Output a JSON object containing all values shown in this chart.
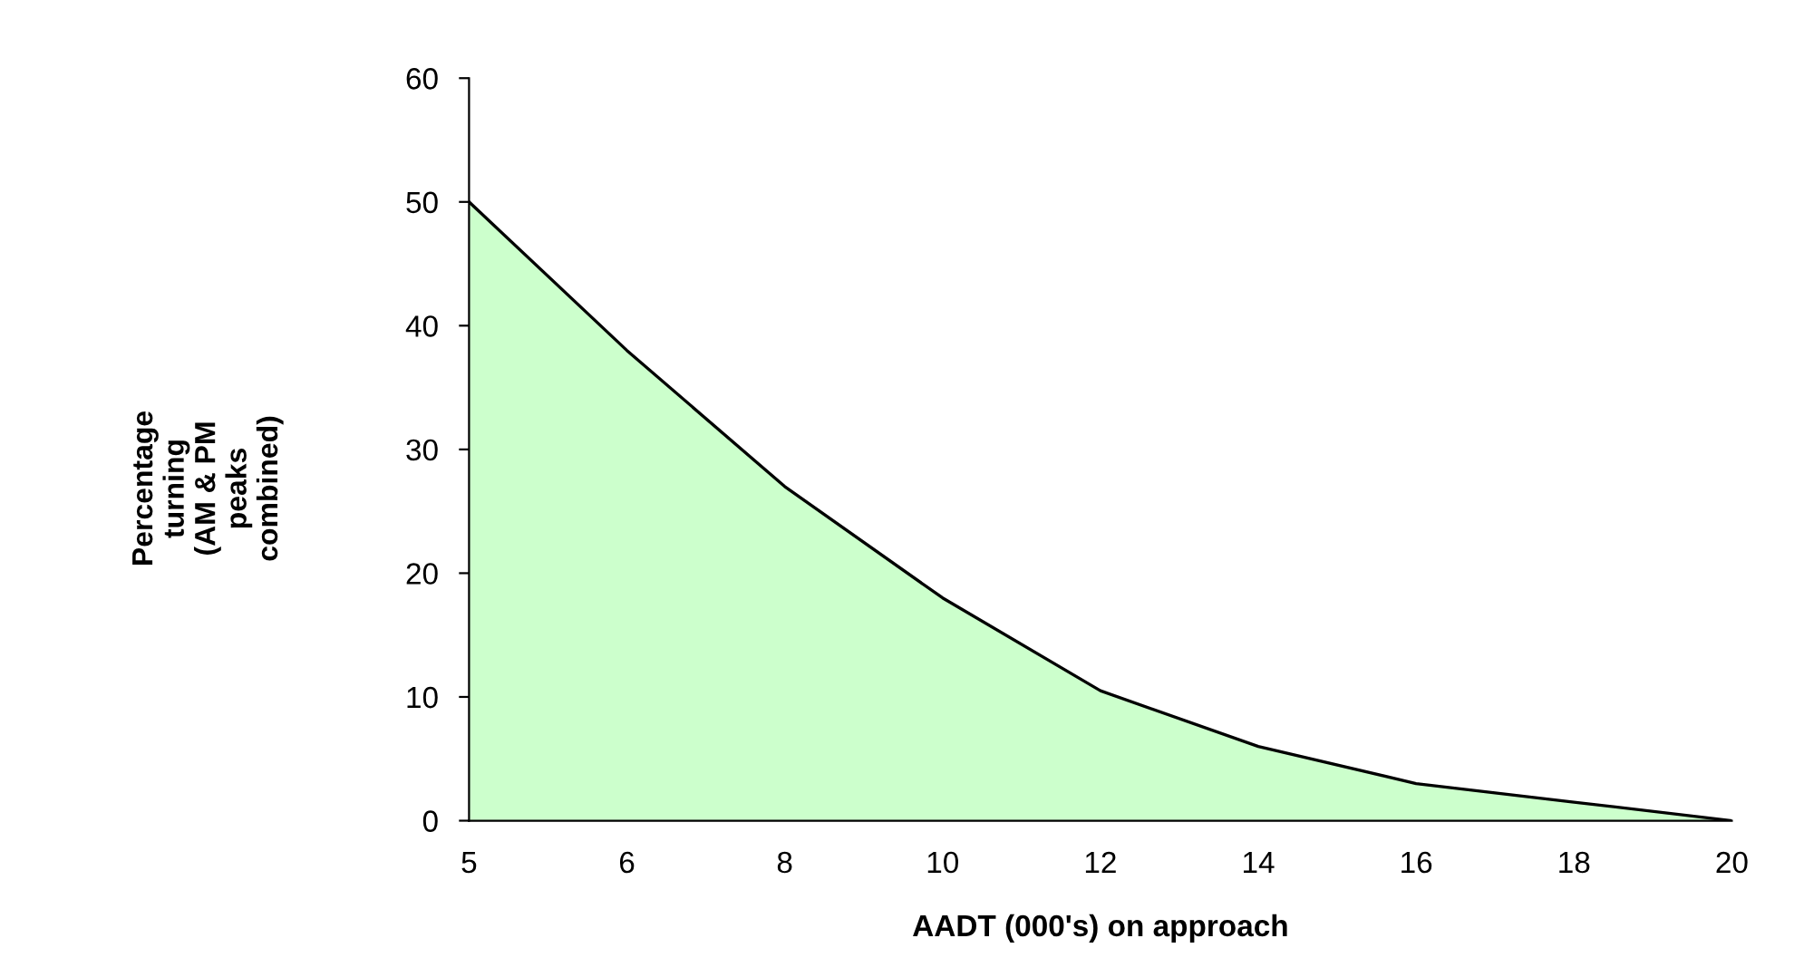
{
  "chart_data": {
    "type": "area",
    "categories": [
      "5",
      "6",
      "8",
      "10",
      "12",
      "14",
      "16",
      "18",
      "20"
    ],
    "series": [
      {
        "color": "#ccffcc",
        "values": [
          50,
          38,
          27,
          18,
          10.5,
          6,
          3,
          1.5,
          0
        ]
      }
    ],
    "ylim": [
      0,
      60
    ],
    "yticks": [
      0,
      10,
      20,
      30,
      40,
      50,
      60
    ],
    "xlabel": "AADT (000's) on approach",
    "ylabel": "Percentage\nturning\n(AM & PM\npeaks\ncombined)",
    "grid": false,
    "legend": false
  }
}
